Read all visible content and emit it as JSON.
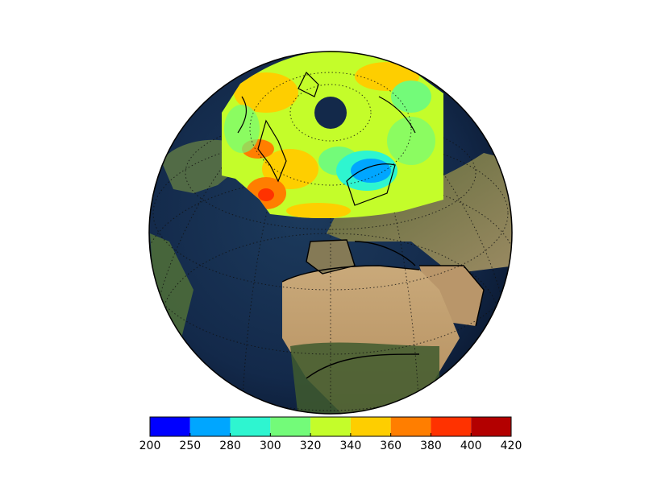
{
  "map": {
    "projection": "orthographic",
    "background": "satellite-imagery",
    "overlay": "polar-cap-filled-contours",
    "graticule": "dotted"
  },
  "colorbar": {
    "orientation": "horizontal",
    "ticks": [
      "200",
      "250",
      "280",
      "300",
      "320",
      "340",
      "360",
      "380",
      "400",
      "420"
    ],
    "colors": [
      "#0000ff",
      "#00a6ff",
      "#2ef5d0",
      "#73fb79",
      "#c4fd2a",
      "#fece00",
      "#ff7e00",
      "#ff3200",
      "#b30000"
    ]
  }
}
